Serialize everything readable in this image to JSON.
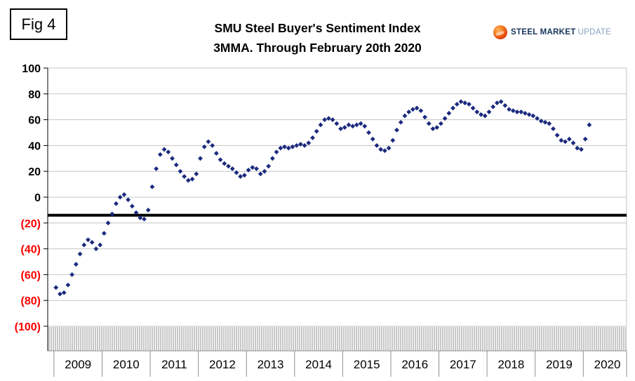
{
  "figure_label": "Fig 4",
  "logo": {
    "steel": "STEEL",
    "market": "MARKET",
    "update": "UPDATE"
  },
  "chart_data": {
    "type": "scatter",
    "title": "SMU Steel Buyer's Sentiment Index",
    "subtitle": "3MMA. Through February 20th 2020",
    "marker": "diamond",
    "grid": "horizontal",
    "legend": "none",
    "ylim": [
      -100,
      100
    ],
    "ytick_interval": 20,
    "yticks": [
      {
        "label": "100",
        "value": 100,
        "color": "#000000"
      },
      {
        "label": "80",
        "value": 80,
        "color": "#000000"
      },
      {
        "label": "60",
        "value": 60,
        "color": "#000000"
      },
      {
        "label": "40",
        "value": 40,
        "color": "#000000"
      },
      {
        "label": "20",
        "value": 20,
        "color": "#000000"
      },
      {
        "label": "0",
        "value": 0,
        "color": "#000000"
      },
      {
        "label": "(20)",
        "value": -20,
        "color": "#ff0000"
      },
      {
        "label": "(40)",
        "value": -40,
        "color": "#ff0000"
      },
      {
        "label": "(60)",
        "value": -60,
        "color": "#ff0000"
      },
      {
        "label": "(80)",
        "value": -80,
        "color": "#ff0000"
      },
      {
        "label": "(100)",
        "value": -100,
        "color": "#ff0000"
      }
    ],
    "x_years": [
      2009,
      2010,
      2011,
      2012,
      2013,
      2014,
      2015,
      2016,
      2017,
      2018,
      2019,
      2020
    ],
    "reference_line": {
      "value": -14,
      "color": "#000000"
    },
    "series": [
      {
        "name": "Steel Buyer's Sentiment Index 3MMA",
        "color": "#1b2a7e",
        "x_start_year": 2009,
        "frequency": "monthly",
        "values": [
          -70,
          -75,
          -74,
          -68,
          -60,
          -52,
          -44,
          -37,
          -33,
          -35,
          -40,
          -37,
          -28,
          -20,
          -13,
          -5,
          0,
          2,
          -2,
          -7,
          -12,
          -16,
          -17,
          -10,
          8,
          22,
          33,
          37,
          35,
          30,
          25,
          20,
          16,
          13,
          14,
          18,
          30,
          39,
          43,
          40,
          34,
          29,
          26,
          24,
          22,
          19,
          16,
          17,
          21,
          23,
          22,
          18,
          20,
          24,
          30,
          35,
          38,
          39,
          38,
          39,
          40,
          41,
          40,
          42,
          46,
          51,
          56,
          60,
          61,
          60,
          57,
          53,
          54,
          56,
          55,
          56,
          57,
          55,
          50,
          45,
          40,
          37,
          36,
          38,
          44,
          52,
          58,
          63,
          66,
          68,
          69,
          67,
          62,
          57,
          53,
          54,
          57,
          61,
          65,
          69,
          72,
          74,
          73,
          72,
          69,
          66,
          64,
          63,
          66,
          70,
          73,
          74,
          71,
          68,
          67,
          66,
          66,
          65,
          64,
          63,
          61,
          59,
          58,
          57,
          53,
          48,
          44,
          43,
          45,
          42,
          38,
          37,
          45,
          56
        ]
      }
    ]
  }
}
